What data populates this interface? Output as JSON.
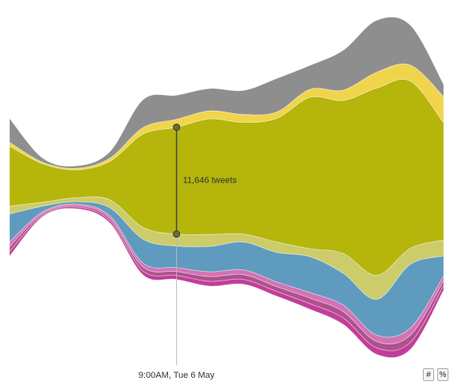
{
  "chart_data": {
    "type": "streamgraph",
    "categories": [
      null,
      null,
      null,
      null,
      null,
      "9:00AM, Tue 6 May",
      null,
      null,
      null,
      null,
      null,
      null,
      null,
      null
    ],
    "series": [
      {
        "color": "#c23d98",
        "values": [
          520,
          170,
          170,
          260,
          430,
          430,
          520,
          520,
          520,
          610,
          700,
          700,
          780,
          520
        ]
      },
      {
        "color": "#b0508f",
        "values": [
          520,
          170,
          170,
          260,
          430,
          430,
          520,
          520,
          520,
          610,
          700,
          700,
          780,
          520
        ]
      },
      {
        "color": "#d473b4",
        "values": [
          520,
          170,
          170,
          260,
          430,
          430,
          520,
          520,
          520,
          610,
          700,
          700,
          780,
          520
        ]
      },
      {
        "color": "#5f9bbf",
        "values": [
          3040,
          610,
          260,
          870,
          2610,
          2350,
          2780,
          3040,
          3220,
          3910,
          3480,
          3910,
          6950,
          2170
        ]
      },
      {
        "color": "#cccc6a",
        "values": [
          870,
          430,
          430,
          870,
          1300,
          1300,
          1300,
          870,
          1130,
          870,
          2170,
          2610,
          1740,
          1740
        ]
      },
      {
        "color": "#b5b50c",
        "values": [
          6520,
          4170,
          3040,
          4170,
          10170,
          11646,
          12600,
          12170,
          13470,
          16510,
          16690,
          20420,
          18250,
          12780
        ],
        "value_labels": [
          null,
          null,
          null,
          null,
          null,
          "11,646 tweets",
          null,
          null,
          null,
          null,
          null,
          null,
          null,
          null
        ]
      },
      {
        "color": "#f0d54c",
        "values": [
          430,
          170,
          170,
          350,
          700,
          870,
          870,
          870,
          700,
          870,
          1130,
          1740,
          1740,
          2870
        ]
      },
      {
        "color": "#8e8e8e",
        "values": [
          2600,
          430,
          260,
          700,
          3040,
          2610,
          2430,
          2610,
          3650,
          2610,
          4350,
          5650,
          4350,
          1300
        ]
      }
    ]
  },
  "buttons": [
    "#",
    "%"
  ]
}
